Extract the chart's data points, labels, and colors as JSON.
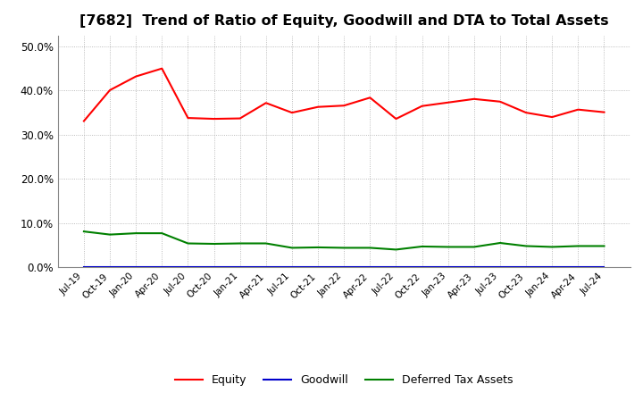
{
  "title": "[7682]  Trend of Ratio of Equity, Goodwill and DTA to Total Assets",
  "title_fontsize": 11.5,
  "title_fontweight": "bold",
  "xlabel": "",
  "ylabel": "",
  "ylim": [
    0.0,
    0.525
  ],
  "yticks": [
    0.0,
    0.1,
    0.2,
    0.3,
    0.4,
    0.5
  ],
  "background_color": "#ffffff",
  "grid_color": "#aaaaaa",
  "x_labels": [
    "Jul-19",
    "Oct-19",
    "Jan-20",
    "Apr-20",
    "Jul-20",
    "Oct-20",
    "Jan-21",
    "Apr-21",
    "Jul-21",
    "Oct-21",
    "Jan-22",
    "Apr-22",
    "Jul-22",
    "Oct-22",
    "Jan-23",
    "Apr-23",
    "Jul-23",
    "Oct-23",
    "Jan-24",
    "Apr-24",
    "Jul-24"
  ],
  "equity": [
    0.331,
    0.401,
    0.432,
    0.45,
    0.338,
    0.336,
    0.337,
    0.372,
    0.35,
    0.363,
    0.366,
    0.384,
    0.336,
    0.365,
    0.373,
    0.381,
    0.375,
    0.35,
    0.34,
    0.357,
    0.351
  ],
  "goodwill": [
    0.0,
    0.0,
    0.0,
    0.0,
    0.0,
    0.0,
    0.0,
    0.0,
    0.0,
    0.0,
    0.0,
    0.0,
    0.0,
    0.0,
    0.0,
    0.0,
    0.0,
    0.0,
    0.0,
    0.0,
    0.0
  ],
  "dta": [
    0.081,
    0.074,
    0.077,
    0.077,
    0.054,
    0.053,
    0.054,
    0.054,
    0.044,
    0.045,
    0.044,
    0.044,
    0.04,
    0.047,
    0.046,
    0.046,
    0.055,
    0.048,
    0.046,
    0.048,
    0.048
  ],
  "equity_color": "#ff0000",
  "goodwill_color": "#0000cc",
  "dta_color": "#008000",
  "line_width": 1.5,
  "legend_labels": [
    "Equity",
    "Goodwill",
    "Deferred Tax Assets"
  ],
  "legend_ncol": 3,
  "tick_fontsize": 7.5,
  "ytick_fontsize": 8.5
}
